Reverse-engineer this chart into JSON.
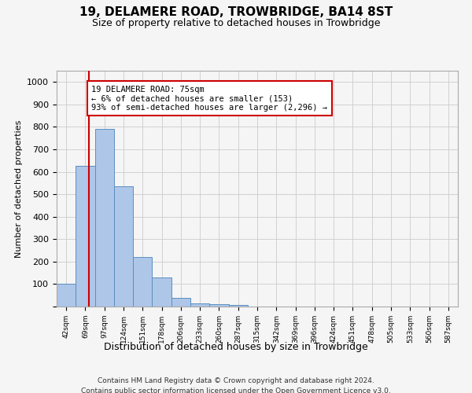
{
  "title": "19, DELAMERE ROAD, TROWBRIDGE, BA14 8ST",
  "subtitle": "Size of property relative to detached houses in Trowbridge",
  "xlabel": "Distribution of detached houses by size in Trowbridge",
  "ylabel": "Number of detached properties",
  "bin_labels": [
    "42sqm",
    "69sqm",
    "97sqm",
    "124sqm",
    "151sqm",
    "178sqm",
    "206sqm",
    "233sqm",
    "260sqm",
    "287sqm",
    "315sqm",
    "342sqm",
    "369sqm",
    "396sqm",
    "424sqm",
    "451sqm",
    "478sqm",
    "505sqm",
    "533sqm",
    "560sqm",
    "587sqm"
  ],
  "bar_heights": [
    100,
    625,
    790,
    535,
    220,
    130,
    40,
    15,
    10,
    8,
    0,
    0,
    0,
    0,
    0,
    0,
    0,
    0,
    0,
    0,
    0
  ],
  "bar_color": "#aec6e8",
  "bar_edge_color": "#5a8fc2",
  "property_line_x": 1.18,
  "annotation_title": "19 DELAMERE ROAD: 75sqm",
  "annotation_line1": "← 6% of detached houses are smaller (153)",
  "annotation_line2": "93% of semi-detached houses are larger (2,296) →",
  "annotation_box_color": "#ffffff",
  "annotation_box_edge": "#cc0000",
  "vline_color": "#cc0000",
  "ylim": [
    0,
    1050
  ],
  "yticks": [
    0,
    100,
    200,
    300,
    400,
    500,
    600,
    700,
    800,
    900,
    1000
  ],
  "footer_line1": "Contains HM Land Registry data © Crown copyright and database right 2024.",
  "footer_line2": "Contains public sector information licensed under the Open Government Licence v3.0.",
  "bg_color": "#f5f5f5",
  "grid_color": "#cccccc"
}
